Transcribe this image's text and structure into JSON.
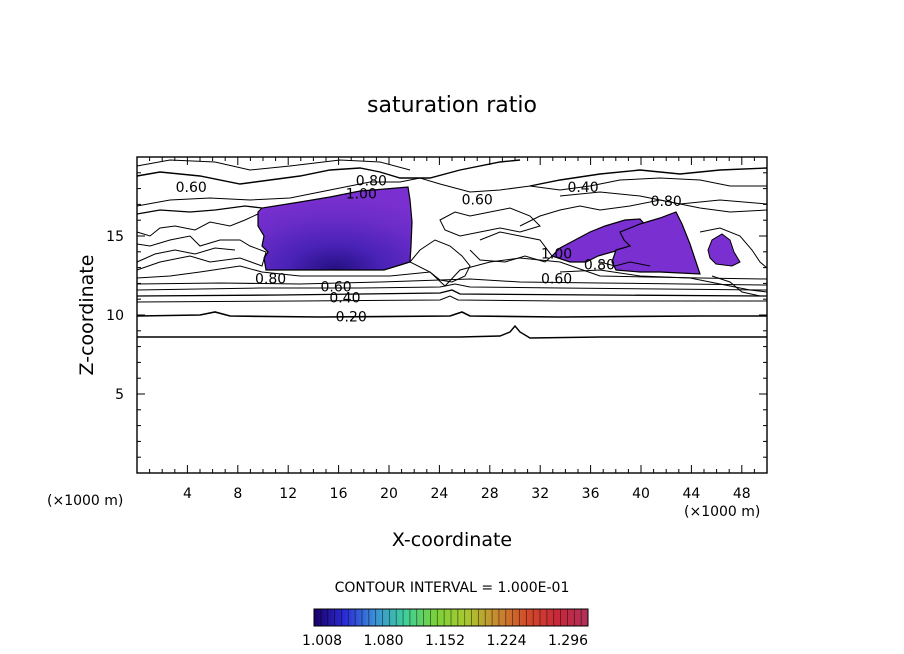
{
  "chart_data": {
    "type": "heatmap",
    "title": "saturation ratio",
    "xlabel": "X-coordinate",
    "ylabel": "Z-coordinate",
    "x_unit": "(×1000 m)",
    "z_unit": "(×1000 m)",
    "xlim": [
      0,
      50
    ],
    "ylim": [
      0,
      20
    ],
    "x_ticks": [
      4,
      8,
      12,
      16,
      20,
      24,
      28,
      32,
      36,
      40,
      44,
      48
    ],
    "y_ticks": [
      5,
      10,
      15
    ],
    "contour_interval_text": "CONTOUR INTERVAL = 1.000E-01",
    "contour_labels": [
      {
        "text": "0.60",
        "x": 4.3,
        "z": 18.1
      },
      {
        "text": "0.80",
        "x": 18.6,
        "z": 18.5
      },
      {
        "text": "1.00",
        "x": 17.8,
        "z": 17.7
      },
      {
        "text": "0.60",
        "x": 27.0,
        "z": 17.3
      },
      {
        "text": "0.40",
        "x": 35.4,
        "z": 18.1
      },
      {
        "text": "0.80",
        "x": 42.0,
        "z": 17.2
      },
      {
        "text": "0.80",
        "x": 10.6,
        "z": 12.3
      },
      {
        "text": "0.60",
        "x": 15.8,
        "z": 11.8
      },
      {
        "text": "0.40",
        "x": 16.5,
        "z": 11.1
      },
      {
        "text": "0.20",
        "x": 17.0,
        "z": 9.9
      },
      {
        "text": "0.60",
        "x": 33.3,
        "z": 12.3
      },
      {
        "text": "1.00",
        "x": 33.3,
        "z": 13.9
      },
      {
        "text": "0.80",
        "x": 36.7,
        "z": 13.2
      }
    ],
    "supersaturated_regions": [
      {
        "name": "left",
        "x": [
          9.6,
          21.9
        ],
        "z": [
          12.6,
          18.1
        ]
      },
      {
        "name": "right-band",
        "x": [
          33.0,
          41.0
        ],
        "z": [
          13.0,
          15.8
        ]
      },
      {
        "name": "right-main",
        "x": [
          37.8,
          44.6
        ],
        "z": [
          12.6,
          16.9
        ]
      },
      {
        "name": "far-right",
        "x": [
          45.3,
          47.5
        ],
        "z": [
          12.7,
          14.8
        ]
      }
    ],
    "colorbar": {
      "ticks": [
        "1.008",
        "1.080",
        "1.152",
        "1.224",
        "1.296"
      ],
      "colors": [
        "#1a0066",
        "#2b2bd6",
        "#3a8fd8",
        "#3fcf9a",
        "#7ad23a",
        "#a8c830",
        "#c88a30",
        "#d24a2a",
        "#c8283a",
        "#b0305a"
      ]
    },
    "colors": {
      "fill_main": "#7a2fd0",
      "fill_core": "#3a1aa6",
      "contour": "#000000"
    }
  }
}
